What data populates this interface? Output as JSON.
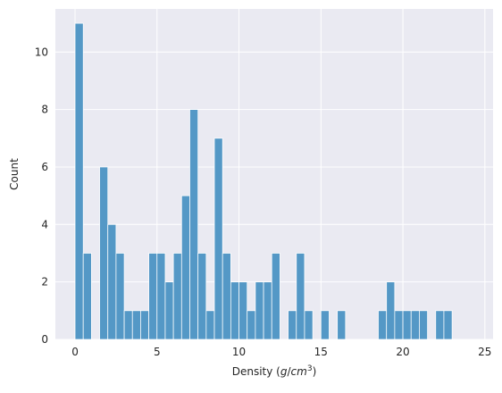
{
  "chart_data": {
    "type": "bar",
    "subtype": "histogram",
    "xlabel": "Density (g/cm³)",
    "ylabel": "Count",
    "xlim": [
      -1.2,
      25.5
    ],
    "ylim": [
      0,
      11.5
    ],
    "xticks": [
      0,
      5,
      10,
      15,
      20,
      25
    ],
    "yticks": [
      0,
      2,
      4,
      6,
      8,
      10
    ],
    "grid": true,
    "bin_width": 0.5,
    "bins": [
      {
        "x0": 0.0,
        "x1": 0.5,
        "count": 11
      },
      {
        "x0": 0.5,
        "x1": 1.0,
        "count": 3
      },
      {
        "x0": 1.5,
        "x1": 2.0,
        "count": 6
      },
      {
        "x0": 2.0,
        "x1": 2.5,
        "count": 4
      },
      {
        "x0": 2.5,
        "x1": 3.0,
        "count": 3
      },
      {
        "x0": 3.0,
        "x1": 3.5,
        "count": 1
      },
      {
        "x0": 3.5,
        "x1": 4.0,
        "count": 1
      },
      {
        "x0": 4.0,
        "x1": 4.5,
        "count": 1
      },
      {
        "x0": 4.5,
        "x1": 5.0,
        "count": 3
      },
      {
        "x0": 5.0,
        "x1": 5.5,
        "count": 3
      },
      {
        "x0": 5.5,
        "x1": 6.0,
        "count": 2
      },
      {
        "x0": 6.0,
        "x1": 6.5,
        "count": 3
      },
      {
        "x0": 6.5,
        "x1": 7.0,
        "count": 5
      },
      {
        "x0": 7.0,
        "x1": 7.5,
        "count": 8
      },
      {
        "x0": 7.5,
        "x1": 8.0,
        "count": 3
      },
      {
        "x0": 8.0,
        "x1": 8.5,
        "count": 1
      },
      {
        "x0": 8.5,
        "x1": 9.0,
        "count": 7
      },
      {
        "x0": 9.0,
        "x1": 9.5,
        "count": 3
      },
      {
        "x0": 9.5,
        "x1": 10.0,
        "count": 2
      },
      {
        "x0": 10.0,
        "x1": 10.5,
        "count": 2
      },
      {
        "x0": 10.5,
        "x1": 11.0,
        "count": 1
      },
      {
        "x0": 11.0,
        "x1": 11.5,
        "count": 2
      },
      {
        "x0": 11.5,
        "x1": 12.0,
        "count": 2
      },
      {
        "x0": 12.0,
        "x1": 12.5,
        "count": 3
      },
      {
        "x0": 13.0,
        "x1": 13.5,
        "count": 1
      },
      {
        "x0": 13.5,
        "x1": 14.0,
        "count": 3
      },
      {
        "x0": 14.0,
        "x1": 14.5,
        "count": 1
      },
      {
        "x0": 15.0,
        "x1": 15.5,
        "count": 1
      },
      {
        "x0": 16.0,
        "x1": 16.5,
        "count": 1
      },
      {
        "x0": 18.5,
        "x1": 19.0,
        "count": 1
      },
      {
        "x0": 19.0,
        "x1": 19.5,
        "count": 2
      },
      {
        "x0": 19.5,
        "x1": 20.0,
        "count": 1
      },
      {
        "x0": 20.0,
        "x1": 20.5,
        "count": 1
      },
      {
        "x0": 20.5,
        "x1": 21.0,
        "count": 1
      },
      {
        "x0": 21.0,
        "x1": 21.5,
        "count": 1
      },
      {
        "x0": 22.0,
        "x1": 22.5,
        "count": 1
      },
      {
        "x0": 22.5,
        "x1": 23.0,
        "count": 1
      }
    ],
    "colors": {
      "bar_fill": "#5498c6",
      "bar_stroke": "#ffffff",
      "plot_background": "#eaeaf2",
      "grid": "#ffffff"
    }
  }
}
